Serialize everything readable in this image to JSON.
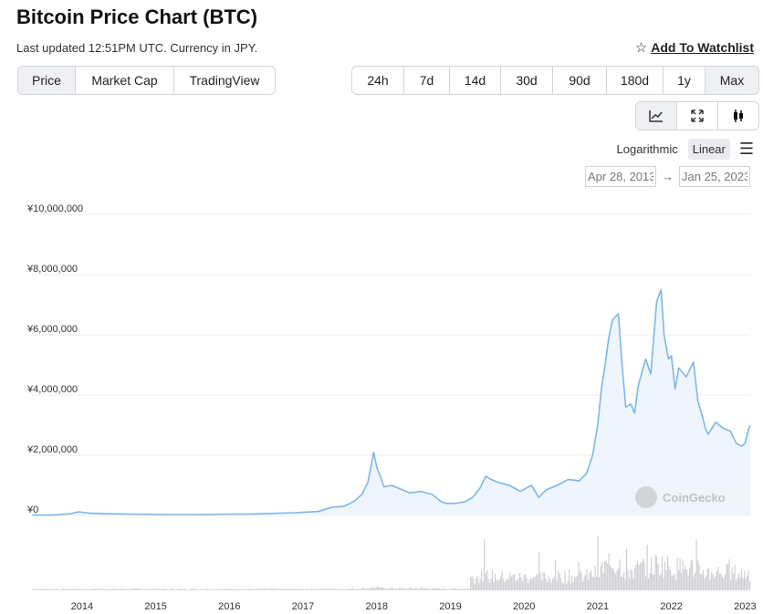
{
  "header": {
    "title": "Bitcoin Price Chart (BTC)",
    "subtitle": "Last updated 12:51PM UTC. Currency in JPY.",
    "watchlist_label": "Add To Watchlist"
  },
  "metric_tabs": [
    {
      "label": "Price",
      "active": true
    },
    {
      "label": "Market Cap",
      "active": false
    },
    {
      "label": "TradingView",
      "active": false
    }
  ],
  "range_tabs": [
    {
      "label": "24h",
      "active": false
    },
    {
      "label": "7d",
      "active": false
    },
    {
      "label": "14d",
      "active": false
    },
    {
      "label": "30d",
      "active": false
    },
    {
      "label": "90d",
      "active": false
    },
    {
      "label": "180d",
      "active": false
    },
    {
      "label": "1y",
      "active": false
    },
    {
      "label": "Max",
      "active": true
    }
  ],
  "chart_type_buttons": [
    {
      "icon": "line-chart-icon",
      "active": true
    },
    {
      "icon": "expand-icon",
      "active": false
    },
    {
      "icon": "candlestick-icon",
      "active": false
    }
  ],
  "scale": {
    "logarithmic_label": "Logarithmic",
    "linear_label": "Linear",
    "active": "Linear"
  },
  "date_range": {
    "from": "Apr 28, 2013",
    "to": "Jan 25, 2023"
  },
  "watermark": "CoinGecko",
  "colors": {
    "line": "#7eb6e8",
    "area": "#eef5fd",
    "volume": "#cfcfd4",
    "grid": "#ececec"
  },
  "chart_data": {
    "type": "area",
    "title": "",
    "xlabel": "",
    "ylabel": "",
    "y_ticks": [
      "¥0",
      "¥2,000,000",
      "¥4,000,000",
      "¥6,000,000",
      "¥8,000,000",
      "¥10,000,000"
    ],
    "ylim": [
      0,
      10000000
    ],
    "x_ticks": [
      "2014",
      "2015",
      "2016",
      "2017",
      "2018",
      "2019",
      "2020",
      "2021",
      "2022",
      "2023"
    ],
    "xlim": [
      2013.32,
      2023.07
    ],
    "grid": true,
    "series": [
      {
        "values_x": [
          2013.32,
          2013.6,
          2013.85,
          2013.95,
          2014.1,
          2014.3,
          2014.6,
          2014.9,
          2015.2,
          2015.5,
          2015.8,
          2016.0,
          2016.3,
          2016.6,
          2016.9,
          2017.0,
          2017.2,
          2017.4,
          2017.55,
          2017.7,
          2017.8,
          2017.88,
          2017.96,
          2018.0,
          2018.05,
          2018.1,
          2018.2,
          2018.3,
          2018.45,
          2018.6,
          2018.75,
          2018.88,
          2018.95,
          2019.05,
          2019.2,
          2019.3,
          2019.4,
          2019.48,
          2019.55,
          2019.65,
          2019.8,
          2019.95,
          2020.1,
          2020.2,
          2020.3,
          2020.45,
          2020.6,
          2020.75,
          2020.85,
          2020.93,
          2021.0,
          2021.05,
          2021.1,
          2021.15,
          2021.2,
          2021.28,
          2021.33,
          2021.38,
          2021.45,
          2021.5,
          2021.55,
          2021.65,
          2021.72,
          2021.8,
          2021.86,
          2021.9,
          2021.96,
          2022.0,
          2022.05,
          2022.1,
          2022.2,
          2022.3,
          2022.36,
          2022.42,
          2022.46,
          2022.5,
          2022.6,
          2022.7,
          2022.8,
          2022.88,
          2022.95,
          2023.0,
          2023.04,
          2023.07
        ],
        "values_y": [
          15000,
          12000,
          60000,
          120000,
          80000,
          65000,
          45000,
          40000,
          30000,
          30000,
          35000,
          45000,
          50000,
          70000,
          90000,
          110000,
          130000,
          280000,
          300000,
          480000,
          700000,
          1100000,
          2100000,
          1600000,
          1300000,
          950000,
          1000000,
          900000,
          750000,
          800000,
          700000,
          450000,
          400000,
          400000,
          450000,
          600000,
          900000,
          1300000,
          1200000,
          1100000,
          1000000,
          800000,
          1000000,
          600000,
          850000,
          1000000,
          1200000,
          1150000,
          1400000,
          2000000,
          3000000,
          4200000,
          5000000,
          5900000,
          6500000,
          6700000,
          5000000,
          3600000,
          3700000,
          3400000,
          4300000,
          5200000,
          4700000,
          7100000,
          7500000,
          6000000,
          5200000,
          5300000,
          4200000,
          4900000,
          4600000,
          5100000,
          3800000,
          3300000,
          2900000,
          2700000,
          3100000,
          2900000,
          2800000,
          2400000,
          2300000,
          2400000,
          2800000,
          3000000
        ]
      }
    ]
  }
}
